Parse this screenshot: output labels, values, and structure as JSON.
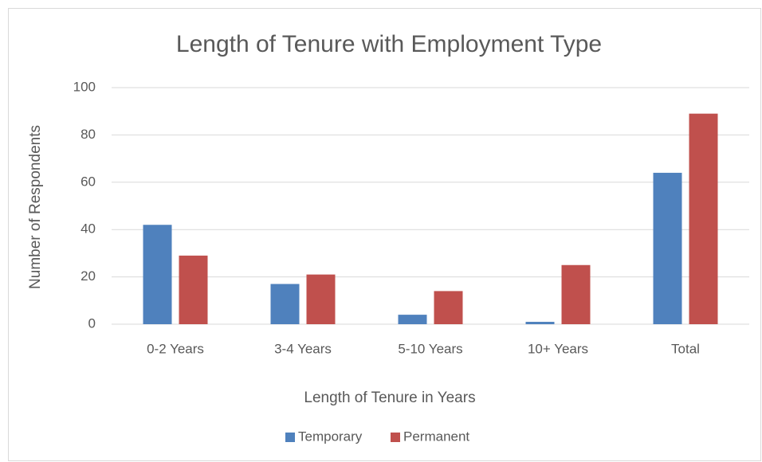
{
  "chart_data": {
    "type": "bar",
    "title": "Length of Tenure with Employment Type",
    "x_label": "Length of Tenure in Years",
    "y_label": "Number of Respondents",
    "categories": [
      "0-2 Years",
      "3-4 Years",
      "5-10 Years",
      "10+ Years",
      "Total"
    ],
    "series": [
      {
        "name": "Temporary",
        "color": "#4f81bd",
        "values": [
          42,
          17,
          4,
          1,
          64
        ]
      },
      {
        "name": "Permanent",
        "color": "#c0504d",
        "values": [
          29,
          21,
          14,
          25,
          89
        ]
      }
    ],
    "ylim": [
      0,
      100
    ],
    "yticks": [
      0,
      20,
      40,
      60,
      80,
      100
    ],
    "grid": true,
    "legend": "bottom"
  }
}
